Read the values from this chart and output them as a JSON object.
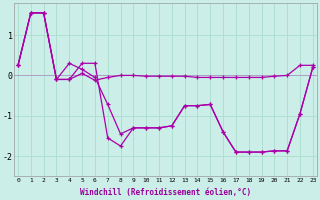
{
  "xlabel": "Windchill (Refroidissement éolien,°C)",
  "background_color": "#cceee8",
  "grid_color": "#aaddcc",
  "line_color": "#aa00aa",
  "x_ticks": [
    0,
    1,
    2,
    3,
    4,
    5,
    6,
    7,
    8,
    9,
    10,
    11,
    12,
    13,
    14,
    15,
    16,
    17,
    18,
    19,
    20,
    21,
    22,
    23
  ],
  "ylim": [
    -2.5,
    1.8
  ],
  "series1": [
    0.25,
    1.55,
    1.55,
    -0.1,
    -0.1,
    0.3,
    0.3,
    -1.55,
    -1.75,
    -1.3,
    -1.3,
    -1.3,
    -1.25,
    -0.75,
    -0.75,
    -0.72,
    -1.4,
    -1.9,
    -1.9,
    -1.9,
    -1.87,
    -1.87,
    -0.95,
    0.2
  ],
  "series2": [
    0.25,
    1.55,
    1.55,
    -0.1,
    0.3,
    0.15,
    -0.05,
    -0.72,
    -1.45,
    -1.3,
    -1.3,
    -1.3,
    -1.25,
    -0.75,
    -0.75,
    -0.72,
    -1.4,
    -1.9,
    -1.9,
    -1.9,
    -1.87,
    -1.87,
    -0.95,
    0.2
  ],
  "series3": [
    0.25,
    1.55,
    1.55,
    -0.1,
    -0.1,
    0.05,
    -0.12,
    -0.05,
    0.0,
    0.0,
    -0.02,
    -0.02,
    -0.02,
    -0.02,
    -0.05,
    -0.05,
    -0.05,
    -0.05,
    -0.05,
    -0.05,
    -0.02,
    0.0,
    0.25,
    0.25
  ]
}
